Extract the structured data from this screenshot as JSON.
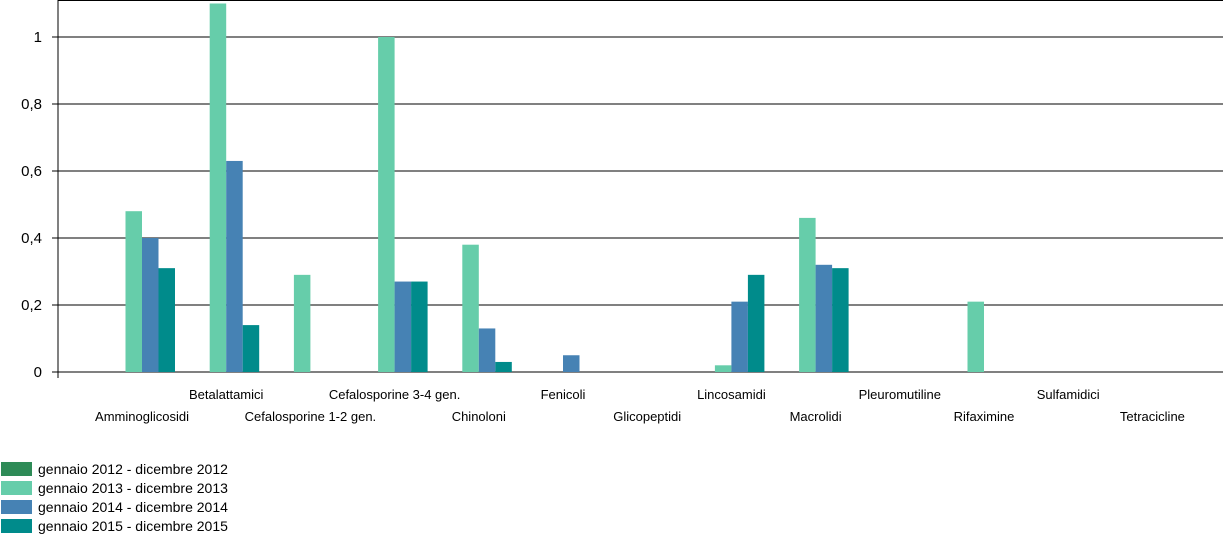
{
  "chart_data": {
    "type": "bar",
    "title": "",
    "xlabel": "",
    "ylabel": "",
    "ylim": [
      0,
      1.1
    ],
    "yticks": [
      0,
      0.2,
      0.4,
      0.6,
      0.8,
      1
    ],
    "ytick_labels": [
      "0",
      "0,2",
      "0,4",
      "0,6",
      "0,8",
      "1"
    ],
    "grid": true,
    "legend_placement": "bottom-left",
    "categories": [
      "Amminoglicosidi",
      "Betalattamici",
      "Cefalosporine 1-2 gen.",
      "Cefalosporine 3-4 gen.",
      "Chinoloni",
      "Fenicoli",
      "Glicopeptidi",
      "Lincosamidi",
      "Macrolidi",
      "Pleuromutiline",
      "Rifaximine",
      "Sulfamidici",
      "Tetracicline"
    ],
    "series": [
      {
        "name": "gennaio 2012 - dicembre 2012",
        "color": "#2e8b57",
        "values": [
          0,
          0,
          0,
          0,
          0,
          0,
          0,
          0,
          0,
          0,
          0,
          0,
          0
        ]
      },
      {
        "name": "gennaio 2013 - dicembre 2013",
        "color": "#66cdaa",
        "values": [
          0.48,
          1.1,
          0.29,
          1.0,
          0.38,
          0,
          0,
          0.02,
          0.46,
          0,
          0.21,
          0,
          0
        ]
      },
      {
        "name": "gennaio 2014 - dicembre 2014",
        "color": "#4682b4",
        "values": [
          0.4,
          0.63,
          0,
          0.27,
          0.13,
          0.05,
          0,
          0.21,
          0.32,
          0,
          0,
          0,
          0
        ]
      },
      {
        "name": "gennaio 2015 - dicembre 2015",
        "color": "#008b8b",
        "values": [
          0.31,
          0.14,
          0,
          0.27,
          0.03,
          0,
          0,
          0.29,
          0.31,
          0,
          0,
          0,
          0
        ]
      }
    ]
  }
}
